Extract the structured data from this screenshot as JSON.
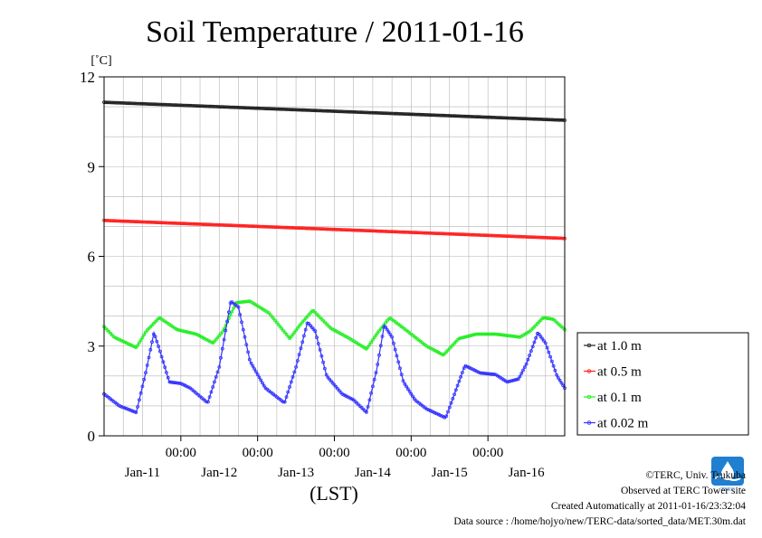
{
  "page": {
    "footer": [
      "©TERC, Univ. Tsukuba",
      "Observed at TERC Tower site",
      "Created Automatically at 2011-01-16/23:32:04",
      "Data source : /home/hojyo/new/TERC-data/sorted_data/MET.30m.dat"
    ],
    "logo_text": "TERC"
  },
  "chart_data": {
    "type": "line",
    "title": "Soil Temperature / 2011-01-16",
    "ylabel": "[˚C]",
    "xlabel": "(LST)",
    "ylim": [
      0,
      12
    ],
    "xlim": [
      0,
      6
    ],
    "y_ticks": [
      0,
      3,
      6,
      9,
      12
    ],
    "x_ticks": [
      1,
      2,
      3,
      4,
      5
    ],
    "x_tick_labels": [
      "00:00",
      "00:00",
      "00:00",
      "00:00",
      "00:00"
    ],
    "x_date_labels": [
      {
        "x": 0.5,
        "label": "Jan-11"
      },
      {
        "x": 1.5,
        "label": "Jan-12"
      },
      {
        "x": 2.5,
        "label": "Jan-13"
      },
      {
        "x": 3.5,
        "label": "Jan-14"
      },
      {
        "x": 4.5,
        "label": "Jan-15"
      },
      {
        "x": 5.5,
        "label": "Jan-16"
      }
    ],
    "x_unit": "days since 2011-01-10 00:00 LST",
    "grid": true,
    "legend_position": "right",
    "series": [
      {
        "name": "at 1.0 m",
        "color": "#222222",
        "points": [
          [
            0,
            11.15
          ],
          [
            6,
            10.55
          ]
        ]
      },
      {
        "name": "at 0.5 m",
        "color": "#ff2020",
        "points": [
          [
            0,
            7.2
          ],
          [
            6,
            6.6
          ]
        ]
      },
      {
        "name": "at 0.1 m",
        "color": "#22ee22",
        "points": [
          [
            0,
            3.65
          ],
          [
            0.13,
            3.3
          ],
          [
            0.42,
            2.95
          ],
          [
            0.55,
            3.5
          ],
          [
            0.72,
            3.95
          ],
          [
            0.95,
            3.55
          ],
          [
            1.2,
            3.4
          ],
          [
            1.42,
            3.1
          ],
          [
            1.55,
            3.5
          ],
          [
            1.72,
            4.45
          ],
          [
            1.9,
            4.5
          ],
          [
            2.15,
            4.1
          ],
          [
            2.42,
            3.25
          ],
          [
            2.55,
            3.7
          ],
          [
            2.72,
            4.2
          ],
          [
            2.95,
            3.6
          ],
          [
            3.2,
            3.25
          ],
          [
            3.42,
            2.9
          ],
          [
            3.55,
            3.4
          ],
          [
            3.72,
            3.95
          ],
          [
            3.9,
            3.6
          ],
          [
            4.2,
            3.0
          ],
          [
            4.42,
            2.7
          ],
          [
            4.62,
            3.25
          ],
          [
            4.85,
            3.4
          ],
          [
            5.1,
            3.4
          ],
          [
            5.42,
            3.3
          ],
          [
            5.55,
            3.5
          ],
          [
            5.72,
            3.95
          ],
          [
            5.85,
            3.9
          ],
          [
            6,
            3.55
          ]
        ]
      },
      {
        "name": "at 0.02 m",
        "color": "#3333ff",
        "points": [
          [
            0,
            1.4
          ],
          [
            0.2,
            1.0
          ],
          [
            0.42,
            0.78
          ],
          [
            0.55,
            2.2
          ],
          [
            0.65,
            3.45
          ],
          [
            0.72,
            2.9
          ],
          [
            0.85,
            1.8
          ],
          [
            1.0,
            1.75
          ],
          [
            1.12,
            1.6
          ],
          [
            1.35,
            1.1
          ],
          [
            1.5,
            2.3
          ],
          [
            1.65,
            4.5
          ],
          [
            1.75,
            4.3
          ],
          [
            1.9,
            2.5
          ],
          [
            2.1,
            1.6
          ],
          [
            2.35,
            1.1
          ],
          [
            2.5,
            2.3
          ],
          [
            2.65,
            3.8
          ],
          [
            2.75,
            3.5
          ],
          [
            2.9,
            2.0
          ],
          [
            3.1,
            1.4
          ],
          [
            3.25,
            1.2
          ],
          [
            3.42,
            0.78
          ],
          [
            3.55,
            2.2
          ],
          [
            3.65,
            3.7
          ],
          [
            3.75,
            3.3
          ],
          [
            3.9,
            1.8
          ],
          [
            4.05,
            1.2
          ],
          [
            4.2,
            0.9
          ],
          [
            4.45,
            0.6
          ],
          [
            4.55,
            1.3
          ],
          [
            4.7,
            2.35
          ],
          [
            4.9,
            2.1
          ],
          [
            5.1,
            2.05
          ],
          [
            5.25,
            1.8
          ],
          [
            5.4,
            1.9
          ],
          [
            5.5,
            2.4
          ],
          [
            5.65,
            3.45
          ],
          [
            5.75,
            3.1
          ],
          [
            5.9,
            2.0
          ],
          [
            6,
            1.6
          ]
        ]
      }
    ]
  }
}
